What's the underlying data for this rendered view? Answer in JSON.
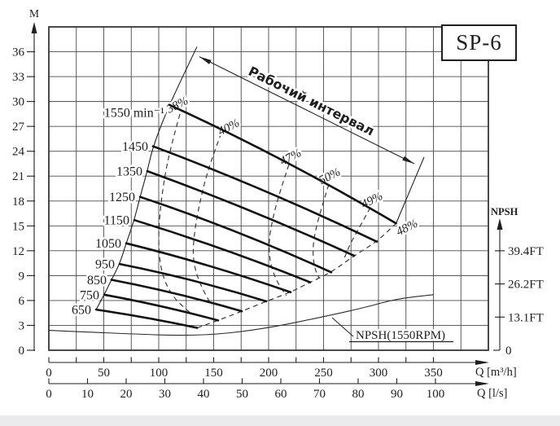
{
  "title": "SP-6",
  "colors": {
    "ink": "#1f1f1f",
    "grid": "#4a4a4a",
    "background": "#ffffff",
    "footer_strip": "#ebebed"
  },
  "working_interval": {
    "label": "Рабочий интервал",
    "from_qh": [
      137,
      35.4
    ],
    "to_qh": [
      332.6,
      22.5
    ]
  },
  "axes": {
    "head": {
      "label": "M",
      "ticks": [
        0,
        3,
        6,
        9,
        12,
        15,
        18,
        21,
        24,
        27,
        30,
        33,
        36
      ],
      "max": 39,
      "grid_step": 3
    },
    "flow_m3h": {
      "label": "Q [m³/h]",
      "labeled_ticks": [
        0,
        50,
        100,
        150,
        200,
        250,
        300,
        350
      ],
      "minor_step": 25,
      "max": 400
    },
    "flow_ls": {
      "label": "Q [l/s]",
      "labeled_ticks": [
        0,
        10,
        20,
        30,
        40,
        50,
        60,
        70,
        80,
        90,
        100
      ]
    },
    "npsh": {
      "label": "NPSH",
      "ticks": [
        {
          "label": "39.4FT",
          "head_m": 12
        },
        {
          "label": "26.2FT",
          "head_m": 8
        },
        {
          "label": "13.1FT",
          "head_m": 4
        },
        {
          "label": "0",
          "head_m": 0
        }
      ]
    }
  },
  "chart_data": {
    "type": "line",
    "title": "SP-6",
    "xlabel": "Q [m³/h]",
    "ylabel": "M",
    "xlim": [
      0,
      400
    ],
    "ylim": [
      0,
      39
    ],
    "grid": true,
    "speed_curves": [
      {
        "label": "1550 min⁻¹",
        "points": [
          [
            109.6,
            29.6
          ],
          [
            212.8,
            22.9
          ],
          [
            316,
            15.3
          ]
        ]
      },
      {
        "label": "1450",
        "points": [
          [
            94.8,
            24.6
          ],
          [
            196.6,
            19.2
          ],
          [
            298.5,
            13.1
          ]
        ]
      },
      {
        "label": "1350",
        "points": [
          [
            89.6,
            21.6
          ],
          [
            183.7,
            16.8
          ],
          [
            277.8,
            11.4
          ]
        ]
      },
      {
        "label": "1250",
        "points": [
          [
            83,
            18.5
          ],
          [
            170,
            14.3
          ],
          [
            257,
            9.4
          ]
        ]
      },
      {
        "label": "1150",
        "points": [
          [
            77.8,
            15.7
          ],
          [
            157.8,
            12.2
          ],
          [
            237.8,
            8.2
          ]
        ]
      },
      {
        "label": "1050",
        "points": [
          [
            70.4,
            12.9
          ],
          [
            145.2,
            10.2
          ],
          [
            220,
            7
          ]
        ]
      },
      {
        "label": "950",
        "points": [
          [
            64.4,
            10.4
          ],
          [
            131.1,
            8.4
          ],
          [
            197.8,
            5.9
          ]
        ]
      },
      {
        "label": "850",
        "points": [
          [
            57,
            8.5
          ],
          [
            116.3,
            6.8
          ],
          [
            175.6,
            4.7
          ]
        ]
      },
      {
        "label": "750",
        "points": [
          [
            50.4,
            6.7
          ],
          [
            102.2,
            5.3
          ],
          [
            154,
            3.6
          ]
        ]
      },
      {
        "label": "650",
        "points": [
          [
            43,
            4.9
          ],
          [
            89,
            3.9
          ],
          [
            135,
            2.7
          ]
        ]
      }
    ],
    "efficiency_contours": [
      {
        "label": "38%",
        "label_pos": [
          118.5,
          29.2
        ],
        "points": [
          [
            119.3,
            28.5
          ],
          [
            108.9,
            23.6
          ],
          [
            102.2,
            18.2
          ],
          [
            99.3,
            13.3
          ],
          [
            102.2,
            9.3
          ],
          [
            112.6,
            6.4
          ],
          [
            129.6,
            4.4
          ]
        ]
      },
      {
        "label": "40%",
        "label_pos": [
          165.2,
          26.5
        ],
        "points": [
          [
            157,
            26.2
          ],
          [
            146.7,
            22.6
          ],
          [
            137.8,
            18.2
          ],
          [
            131.9,
            13.8
          ],
          [
            131.1,
            10.8
          ],
          [
            137,
            8.1
          ],
          [
            148.1,
            5.4
          ]
        ]
      },
      {
        "label": "47%",
        "label_pos": [
          221.5,
          22.9
        ],
        "points": [
          [
            218.5,
            22.4
          ],
          [
            210.4,
            19.2
          ],
          [
            203.7,
            15.9
          ],
          [
            200,
            13
          ],
          [
            201.5,
            10.3
          ],
          [
            208.9,
            7.9
          ],
          [
            216.3,
            6.6
          ]
        ]
      },
      {
        "label": "50%",
        "label_pos": [
          257,
          20.6
        ],
        "points": [
          [
            254.8,
            20
          ],
          [
            248.9,
            17.5
          ],
          [
            243,
            14.7
          ],
          [
            240,
            12.3
          ],
          [
            241.5,
            10
          ],
          [
            245.9,
            8.7
          ]
        ]
      },
      {
        "label": "49%",
        "label_pos": [
          295.6,
          17.7
        ],
        "points": [
          [
            292.6,
            17.2
          ],
          [
            283,
            14.9
          ],
          [
            274.1,
            12.8
          ],
          [
            268.9,
            11.1
          ]
        ]
      },
      {
        "label": "48%",
        "label_pos": [
          327.4,
          14.4
        ],
        "points": [
          [
            135,
            2.7
          ],
          [
            154,
            3.6
          ],
          [
            175.6,
            4.7
          ],
          [
            197.8,
            5.9
          ],
          [
            220,
            7
          ],
          [
            237.8,
            8.2
          ],
          [
            257,
            9.4
          ],
          [
            277.8,
            11.4
          ],
          [
            298.5,
            13.1
          ],
          [
            316,
            15.3
          ]
        ]
      }
    ],
    "boundary_left": [
      [
        43,
        4.9
      ],
      [
        50.4,
        6.7
      ],
      [
        57,
        8.5
      ],
      [
        64.4,
        10.4
      ],
      [
        70.4,
        12.9
      ],
      [
        77.8,
        15.7
      ],
      [
        83,
        18.5
      ],
      [
        89.6,
        21.6
      ],
      [
        94.8,
        24.6
      ],
      [
        109.6,
        29.6
      ],
      [
        134.8,
        36.6
      ]
    ],
    "boundary_right": [
      [
        316,
        15.3
      ],
      [
        341.5,
        23.3
      ]
    ],
    "npsh_curve": {
      "label": "NPSH(1550RPM)",
      "points": [
        [
          0,
          2.4
        ],
        [
          67,
          2
        ],
        [
          136,
          1.7
        ],
        [
          193,
          2.5
        ],
        [
          252,
          4.1
        ],
        [
          289,
          5.2
        ],
        [
          316,
          6.2
        ],
        [
          350,
          6.7
        ]
      ]
    }
  }
}
